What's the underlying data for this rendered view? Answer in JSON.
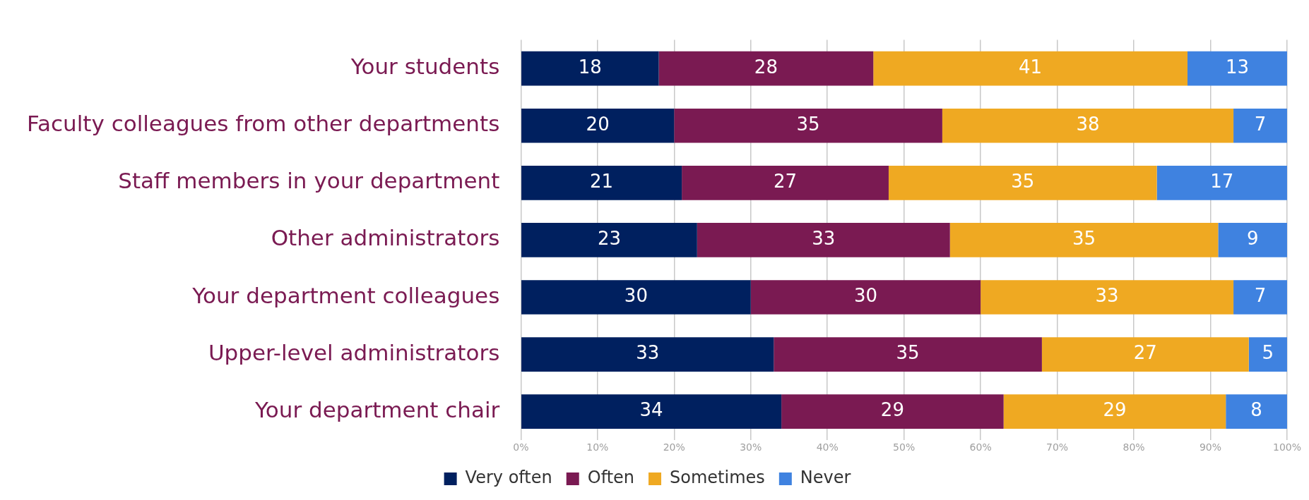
{
  "chart_data": {
    "type": "bar",
    "orientation": "horizontal",
    "stacked": true,
    "categories": [
      "Your students",
      "Faculty colleagues from other departments",
      "Staff members in your department",
      "Other administrators",
      "Your department colleagues",
      "Upper-level administrators",
      "Your department chair"
    ],
    "series": [
      {
        "name": "Very often",
        "color": "#00205f",
        "values": [
          18,
          20,
          21,
          23,
          30,
          33,
          34
        ]
      },
      {
        "name": "Often",
        "color": "#7a1a52",
        "values": [
          28,
          35,
          27,
          33,
          30,
          35,
          29
        ]
      },
      {
        "name": "Sometimes",
        "color": "#efa922",
        "values": [
          41,
          38,
          35,
          35,
          33,
          27,
          29
        ]
      },
      {
        "name": "Never",
        "color": "#3f82e0",
        "values": [
          13,
          7,
          17,
          9,
          7,
          5,
          8
        ]
      }
    ],
    "xlim": [
      0,
      100
    ],
    "xticks": [
      {
        "value": 0,
        "label": "0%"
      },
      {
        "value": 10,
        "label": "10%"
      },
      {
        "value": 20,
        "label": "20%"
      },
      {
        "value": 30,
        "label": "30%"
      },
      {
        "value": 40,
        "label": "40%"
      },
      {
        "value": 50,
        "label": "50%"
      },
      {
        "value": 60,
        "label": "60%"
      },
      {
        "value": 70,
        "label": "70%"
      },
      {
        "value": 80,
        "label": "80%"
      },
      {
        "value": 90,
        "label": "90%"
      },
      {
        "value": 100,
        "label": "100%"
      }
    ],
    "grid": "x",
    "legend": "bottom",
    "data_labels": true
  }
}
